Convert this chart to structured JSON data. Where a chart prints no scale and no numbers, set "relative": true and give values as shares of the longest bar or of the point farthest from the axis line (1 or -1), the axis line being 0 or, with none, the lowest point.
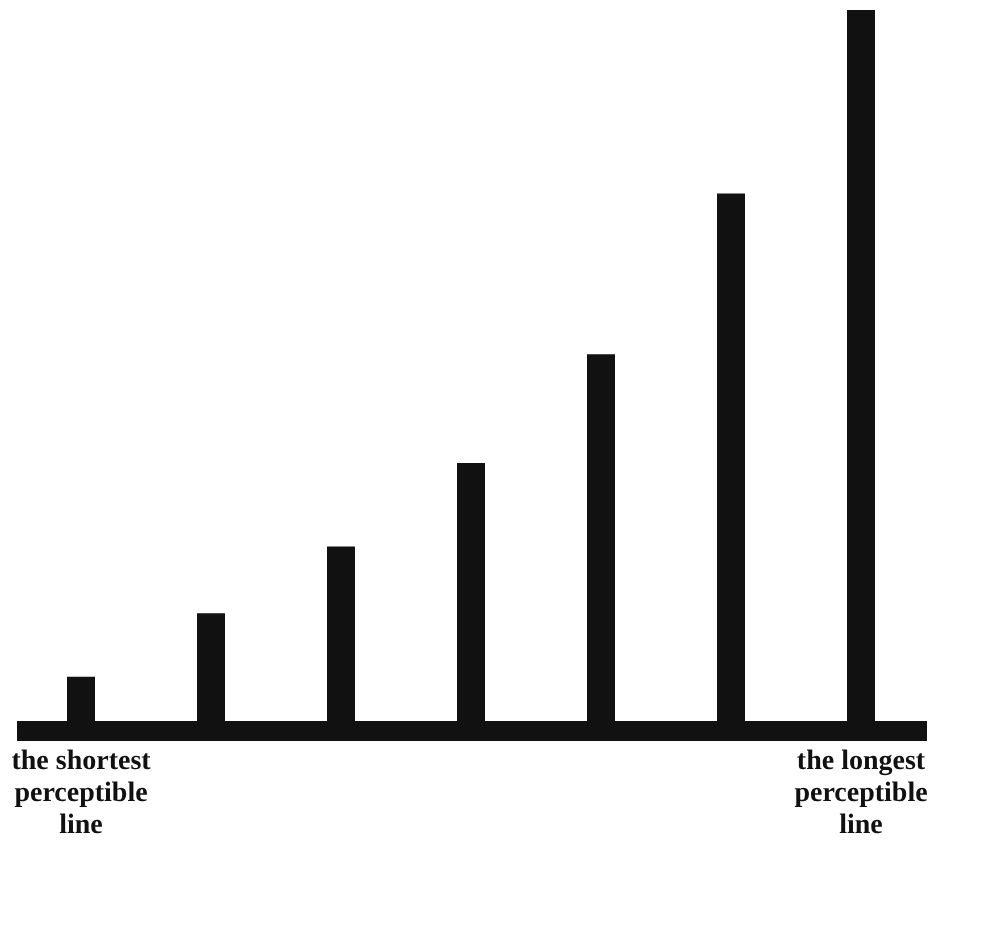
{
  "chart_data": {
    "type": "bar",
    "relative": true,
    "categories": [
      "the shortest perceptible line",
      null,
      null,
      null,
      null,
      null,
      "the longest perceptible line"
    ],
    "values": [
      0.074,
      0.162,
      0.255,
      0.371,
      0.522,
      0.745,
      1
    ],
    "color": "#111111"
  }
}
